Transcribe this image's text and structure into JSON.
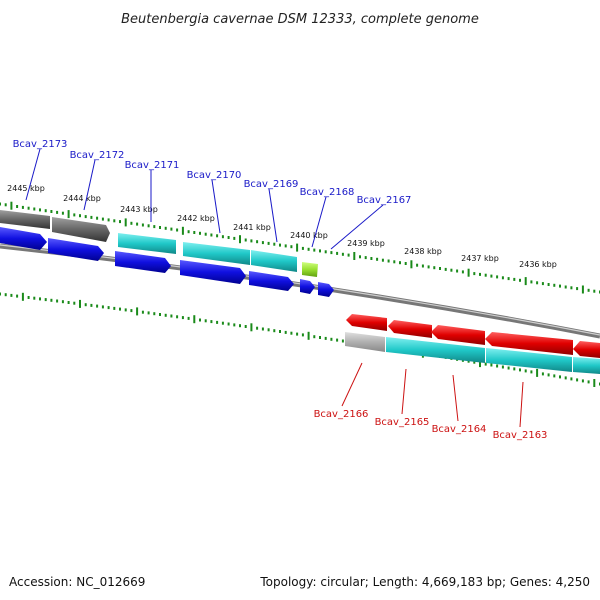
{
  "title": "Beutenbergia cavernae DSM 12333, complete genome",
  "footer": {
    "accession": "Accession: NC_012669",
    "topology": "Topology: circular; Length: 4,669,183 bp; Genes: 4,250"
  },
  "kbp_labels": [
    "2445 kbp",
    "2444 kbp",
    "2443 kbp",
    "2442 kbp",
    "2441 kbp",
    "2440 kbp",
    "2439 kbp",
    "2438 kbp",
    "2437 kbp",
    "2436 kbp"
  ],
  "top_gene_labels": [
    "Bcav_2173",
    "Bcav_2172",
    "Bcav_2171",
    "Bcav_2170",
    "Bcav_2169",
    "Bcav_2168",
    "Bcav_2167"
  ],
  "bottom_gene_labels": [
    "Bcav_2166",
    "Bcav_2165",
    "Bcav_2164",
    "Bcav_2163"
  ],
  "colors": {
    "forward_gene": "#1010e0",
    "reverse_gene": "#e00000",
    "cds_cyan": "#20c8c8",
    "gray_feature": "#666666",
    "small_feature": "#99e030",
    "backbone": "#888888",
    "tick": "#1a8a1a"
  }
}
